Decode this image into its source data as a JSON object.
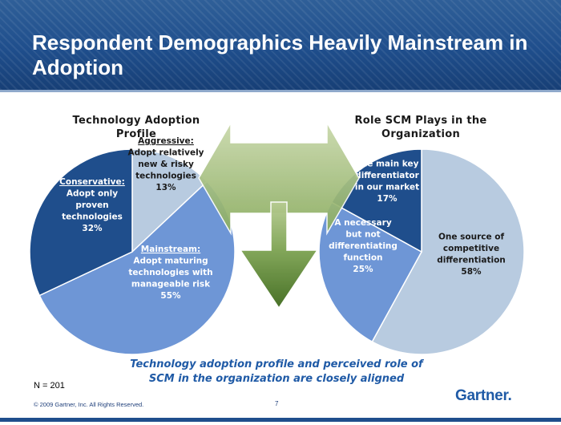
{
  "slide": {
    "title": "Respondent Demographics Heavily Mainstream in Adoption",
    "summary_line1": "Technology adoption profile and perceived role of",
    "summary_line2": "SCM in the organization are closely aligned",
    "sample_size": "N = 201",
    "copyright": "© 2009 Gartner, Inc. All Rights Reserved.",
    "page_number": "7",
    "logo_text": "Gartner.",
    "colors": {
      "header": "#1f4e8c",
      "dark_blue": "#1f4e8c",
      "medium_blue": "#6e96d6",
      "light_blue": "#b8cbe0",
      "arrow_green": "#5f8a32"
    }
  },
  "chart_data": [
    {
      "type": "pie",
      "title_line1": "Technology Adoption",
      "title_line2": "Profile",
      "slices": [
        {
          "name": "Aggressive:",
          "description": [
            "Adopt relatively",
            "new & risky",
            "technologies"
          ],
          "value": 13,
          "value_label": "13%",
          "color": "#b8cbe0"
        },
        {
          "name": "Mainstream:",
          "description": [
            "Adopt maturing",
            "technologies with",
            "manageable risk"
          ],
          "value": 55,
          "value_label": "55%",
          "color": "#6e96d6"
        },
        {
          "name": "Conservative:",
          "description": [
            "Adopt only",
            "proven",
            "technologies"
          ],
          "value": 32,
          "value_label": "32%",
          "color": "#1f4e8c"
        }
      ]
    },
    {
      "type": "pie",
      "title_line1": "Role SCM Plays in the",
      "title_line2": "Organization",
      "slices": [
        {
          "name": "",
          "description": [
            "One source of",
            "competitive",
            "differentiation"
          ],
          "value": 58,
          "value_label": "58%",
          "color": "#b8cbe0"
        },
        {
          "name": "",
          "description": [
            "A necessary",
            "but not",
            "differentiating",
            "function"
          ],
          "value": 25,
          "value_label": "25%",
          "color": "#6e96d6"
        },
        {
          "name": "",
          "description": [
            "The main key",
            "differentiator",
            "in our market"
          ],
          "value": 17,
          "value_label": "17%",
          "color": "#1f4e8c"
        }
      ]
    }
  ]
}
